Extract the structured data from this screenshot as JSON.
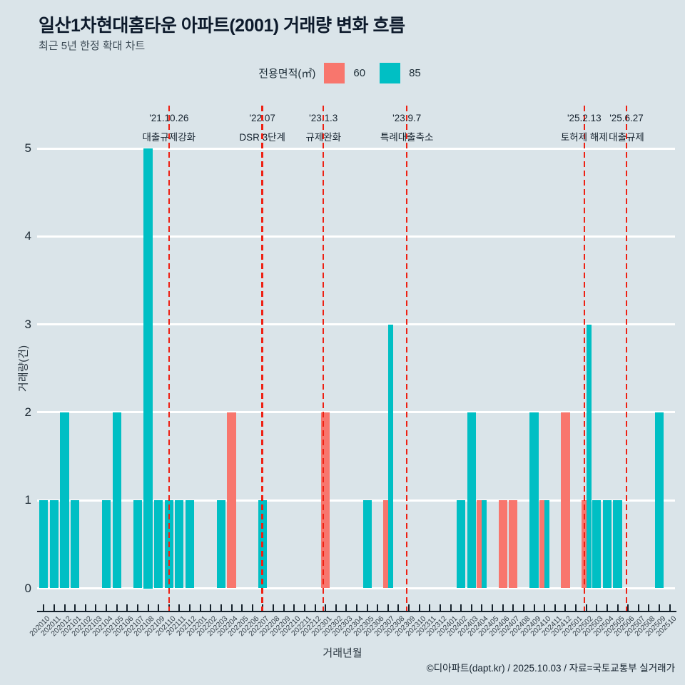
{
  "page": {
    "title": "일산1차현대홈타운 아파트(2001) 거래량 변화 흐름",
    "subtitle": "최근 5년 한정 확대 차트",
    "footer": "©디아파트(dapt.kr) / 2025.10.03 / 자료=국토교통부 실거래가"
  },
  "legend": {
    "title": "전용면적(㎡)",
    "items": [
      {
        "label": "60",
        "color": "#F8766D"
      },
      {
        "label": "85",
        "color": "#00BFC4"
      }
    ]
  },
  "chart_data": {
    "type": "bar",
    "title": "일산1차현대홈타운 아파트(2001) 거래량 변화 흐름",
    "subtitle": "최근 5년 한정 확대 차트",
    "xlabel": "거래년월",
    "ylabel": "거래량(건)",
    "ylim": [
      0,
      5
    ],
    "yticks": [
      0,
      1,
      2,
      3,
      4,
      5
    ],
    "grid": true,
    "legend_position": "top-center",
    "categories": [
      "202010",
      "202011",
      "202012",
      "202101",
      "202102",
      "202103",
      "202104",
      "202105",
      "202106",
      "202107",
      "202108",
      "202109",
      "202110",
      "202111",
      "202112",
      "202201",
      "202202",
      "202203",
      "202204",
      "202205",
      "202206",
      "202207",
      "202208",
      "202209",
      "202210",
      "202211",
      "202212",
      "202301",
      "202302",
      "202303",
      "202304",
      "202305",
      "202306",
      "202307",
      "202308",
      "202309",
      "202310",
      "202311",
      "202312",
      "202401",
      "202402",
      "202403",
      "202404",
      "202405",
      "202406",
      "202407",
      "202408",
      "202409",
      "202410",
      "202411",
      "202412",
      "202501",
      "202502",
      "202503",
      "202504",
      "202505",
      "202506",
      "202507",
      "202508",
      "202509",
      "202510"
    ],
    "series": [
      {
        "name": "60",
        "color": "#F8766D",
        "values": [
          0,
          0,
          0,
          0,
          0,
          0,
          0,
          0,
          0,
          0,
          0,
          0,
          0,
          0,
          0,
          0,
          0,
          0,
          2,
          0,
          0,
          0,
          0,
          0,
          0,
          0,
          0,
          2,
          0,
          0,
          0,
          0,
          0,
          1,
          0,
          0,
          0,
          0,
          0,
          0,
          0,
          0,
          1,
          0,
          1,
          1,
          0,
          0,
          1,
          0,
          2,
          0,
          1,
          0,
          0,
          0,
          0,
          0,
          0,
          0,
          0
        ]
      },
      {
        "name": "85",
        "color": "#00BFC4",
        "values": [
          1,
          1,
          2,
          1,
          0,
          0,
          1,
          2,
          0,
          1,
          5,
          1,
          1,
          1,
          1,
          0,
          0,
          1,
          0,
          0,
          0,
          1,
          0,
          0,
          0,
          0,
          0,
          0,
          0,
          0,
          0,
          1,
          0,
          3,
          0,
          0,
          0,
          0,
          0,
          0,
          1,
          2,
          1,
          0,
          0,
          0,
          0,
          2,
          1,
          0,
          0,
          0,
          3,
          1,
          1,
          1,
          0,
          0,
          0,
          2,
          0
        ]
      }
    ],
    "events": [
      {
        "date": "'21.10.26",
        "label": "대출규제강화",
        "month_index": 12.0
      },
      {
        "date": "'22.07",
        "label": "DSR 3단계",
        "month_index": 20.95
      },
      {
        "date": "'23.1.3",
        "label": "규제완화",
        "month_index": 26.8
      },
      {
        "date": "'23.9.7",
        "label": "특례대출축소",
        "month_index": 34.8
      },
      {
        "date": "'25.2.13",
        "label": "토허제 해제",
        "month_index": 51.8
      },
      {
        "date": "'25.6.27",
        "label": "대출규제",
        "month_index": 55.85
      }
    ],
    "colors": {
      "background": "#dae4e9",
      "gridline": "#ffffff",
      "event_line": "#ee2013",
      "axis": "#15212b",
      "series_60": "#F8766D",
      "series_85": "#00BFC4"
    }
  }
}
